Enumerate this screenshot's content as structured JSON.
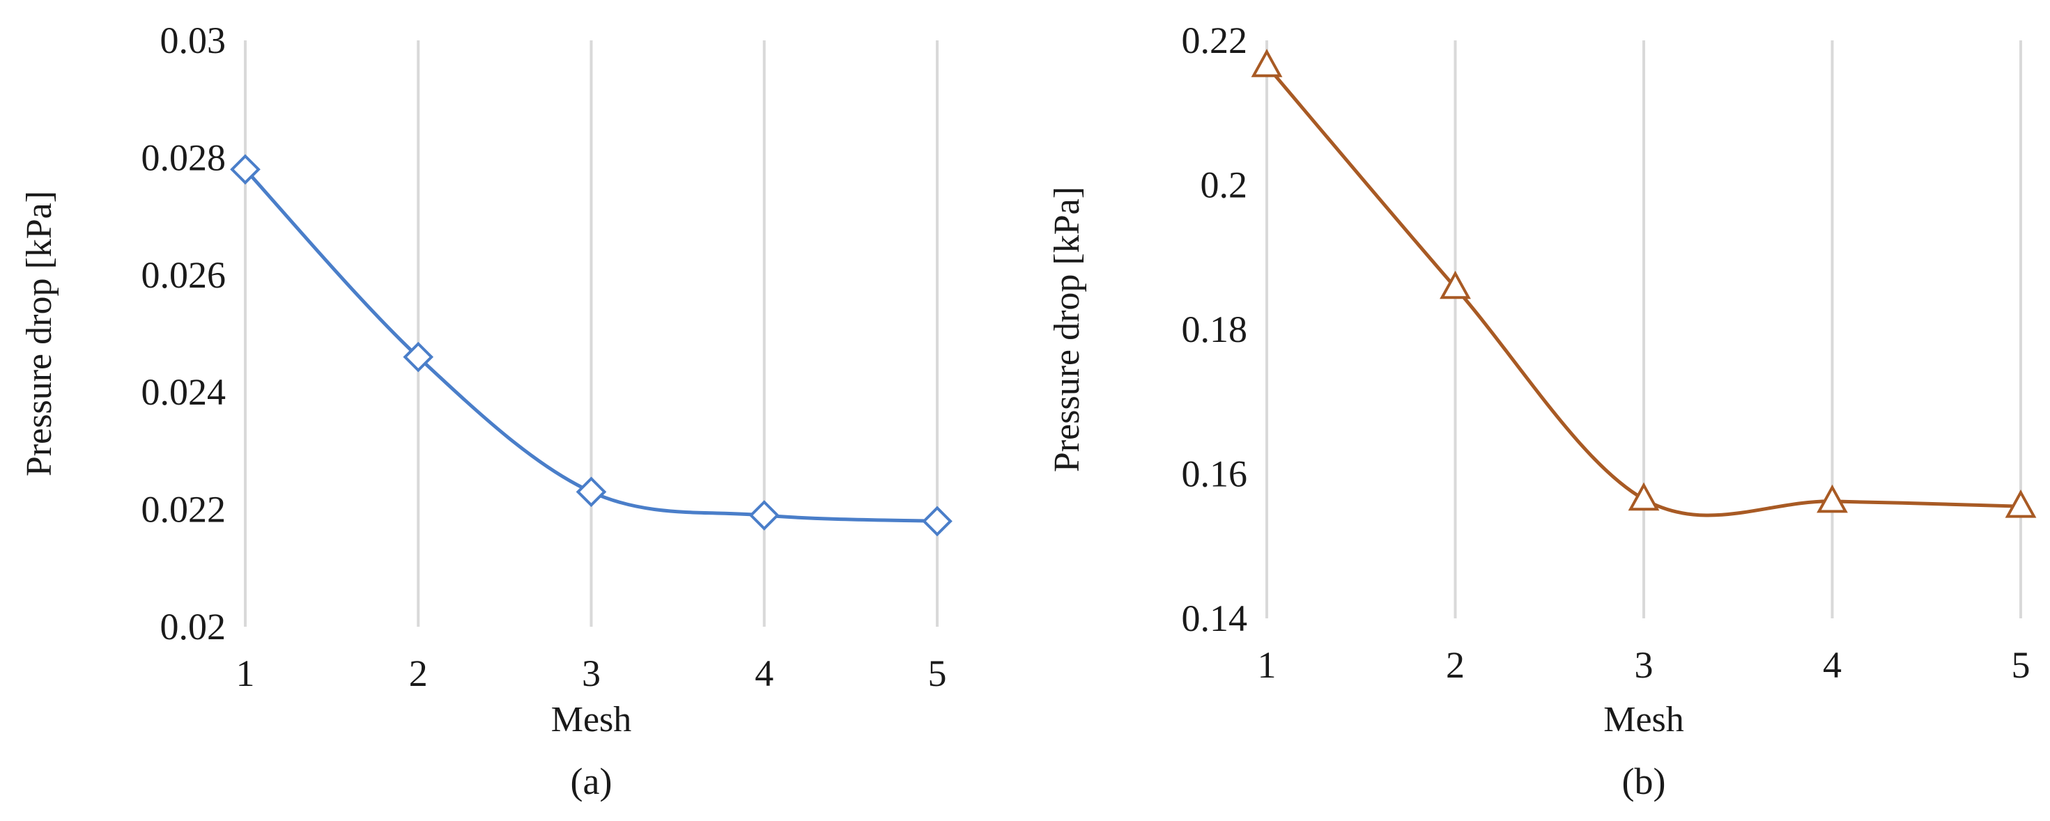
{
  "chart_data": [
    {
      "type": "line",
      "caption": "(a)",
      "xlabel": "Mesh",
      "ylabel": "Pressure drop [kPa]",
      "x": [
        1,
        2,
        3,
        4,
        5
      ],
      "xticks": [
        "1",
        "2",
        "3",
        "4",
        "5"
      ],
      "ylim": [
        0.02,
        0.03
      ],
      "yticks": [
        "0.02",
        "0.022",
        "0.024",
        "0.026",
        "0.028",
        "0.03"
      ],
      "grid": "vertical",
      "marker": "diamond",
      "color": "#4a7ec9",
      "series": [
        {
          "values": [
            0.0278,
            0.0246,
            0.0223,
            0.0219,
            0.0218
          ]
        }
      ]
    },
    {
      "type": "line",
      "caption": "(b)",
      "xlabel": "Mesh",
      "ylabel": "Pressure drop [kPa]",
      "x": [
        1,
        2,
        3,
        4,
        5
      ],
      "xticks": [
        "1",
        "2",
        "3",
        "4",
        "5"
      ],
      "ylim": [
        0.14,
        0.22
      ],
      "yticks": [
        "0.14",
        "0.16",
        "0.18",
        "0.2",
        "0.22"
      ],
      "grid": "vertical",
      "marker": "triangle",
      "color": "#a85a24",
      "series": [
        {
          "values": [
            0.2165,
            0.1858,
            0.1565,
            0.1562,
            0.1555
          ]
        }
      ]
    }
  ]
}
